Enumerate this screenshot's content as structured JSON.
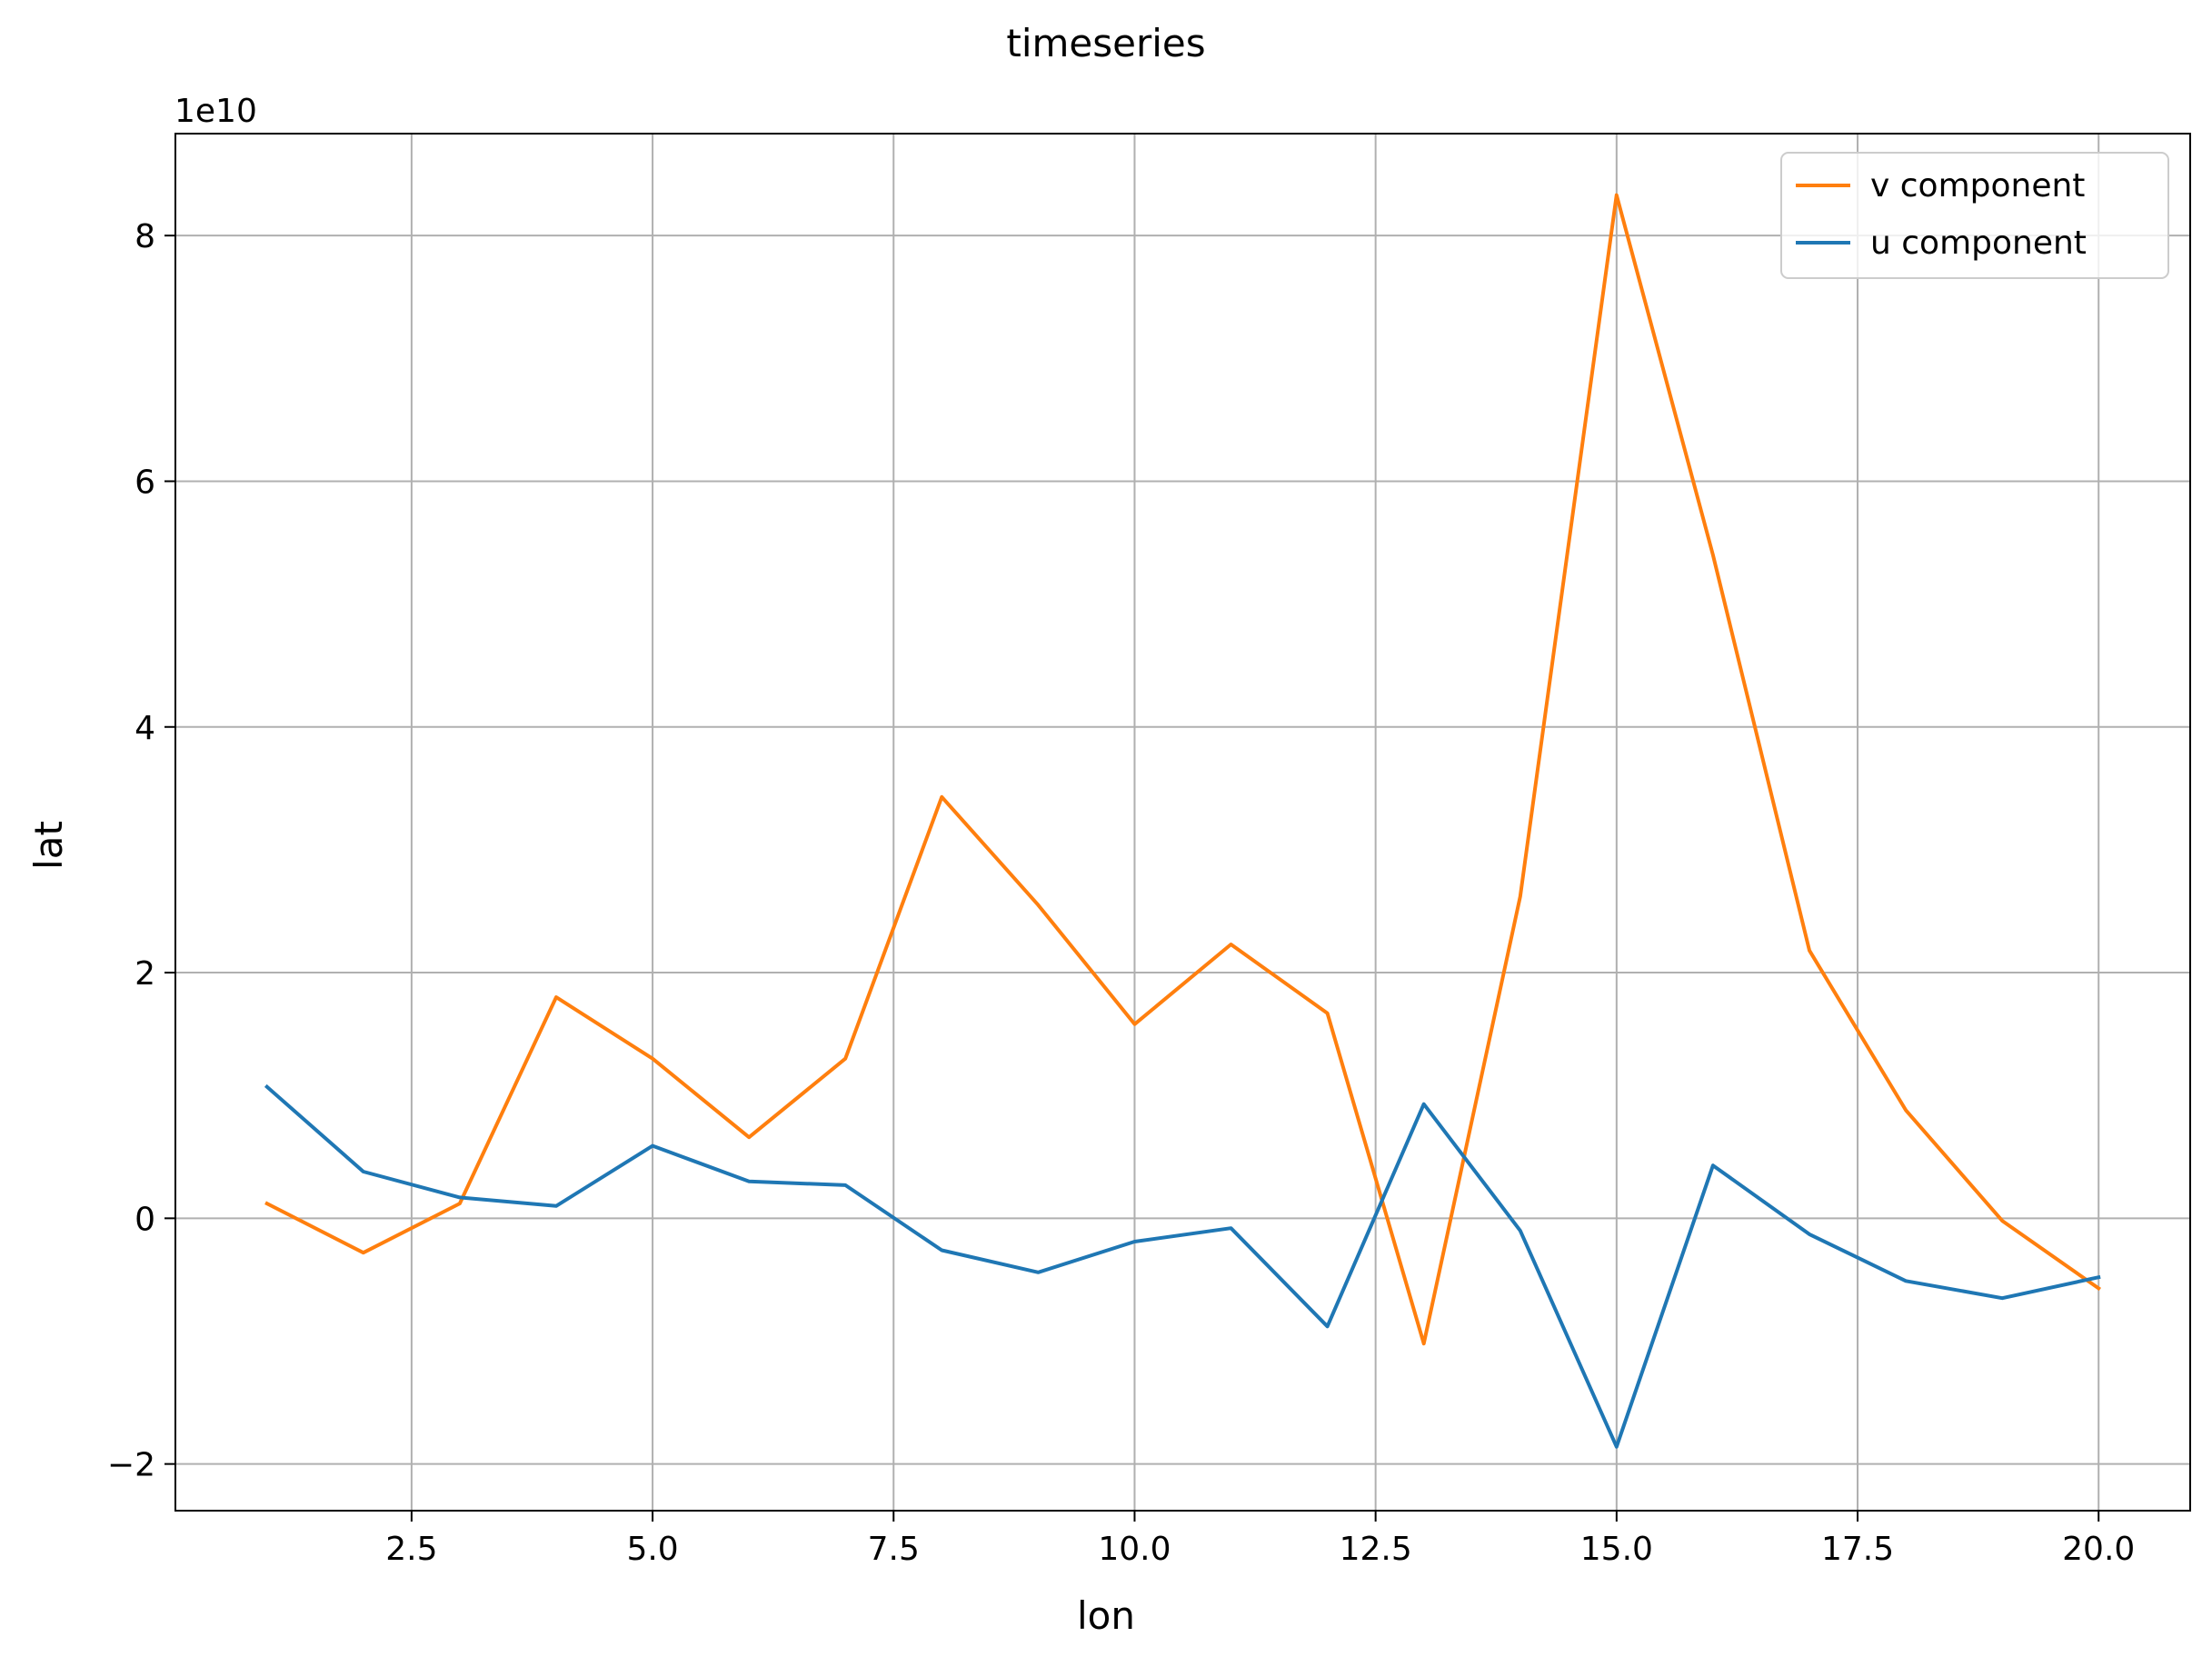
{
  "chart_data": {
    "type": "line",
    "title": "timeseries",
    "xlabel": "lon",
    "ylabel": "lat",
    "y_offset_label": "1e10",
    "xlim": [
      0.05,
      20.95
    ],
    "ylim": [
      -2.38,
      8.83
    ],
    "y_scale_factor": 10000000000,
    "grid": true,
    "legend_position": "upper right",
    "x_ticks": [
      2.5,
      5.0,
      7.5,
      10.0,
      12.5,
      15.0,
      17.5,
      20.0
    ],
    "x_tick_labels": [
      "2.5",
      "5.0",
      "7.5",
      "10.0",
      "12.5",
      "15.0",
      "17.5",
      "20.0"
    ],
    "y_ticks": [
      -2,
      0,
      2,
      4,
      6,
      8
    ],
    "y_tick_labels": [
      "−2",
      "0",
      "2",
      "4",
      "6",
      "8"
    ],
    "x": [
      1,
      2,
      3,
      4,
      5,
      6,
      7,
      8,
      9,
      10,
      11,
      12,
      13,
      14,
      15,
      16,
      17,
      18,
      19,
      20
    ],
    "series": [
      {
        "name": "v component",
        "color": "#ff7f0e",
        "values": [
          0.12,
          -0.28,
          0.12,
          1.8,
          1.3,
          0.66,
          1.3,
          3.43,
          2.55,
          1.58,
          2.23,
          1.67,
          -1.02,
          2.62,
          8.33,
          5.4,
          2.18,
          0.88,
          -0.02,
          -0.57
        ]
      },
      {
        "name": "u component",
        "color": "#1f77b4",
        "values": [
          1.07,
          0.38,
          0.17,
          0.1,
          0.59,
          0.3,
          0.27,
          -0.26,
          -0.44,
          -0.19,
          -0.08,
          -0.88,
          0.93,
          -0.1,
          -1.86,
          0.43,
          -0.13,
          -0.51,
          -0.65,
          -0.48
        ]
      }
    ]
  }
}
